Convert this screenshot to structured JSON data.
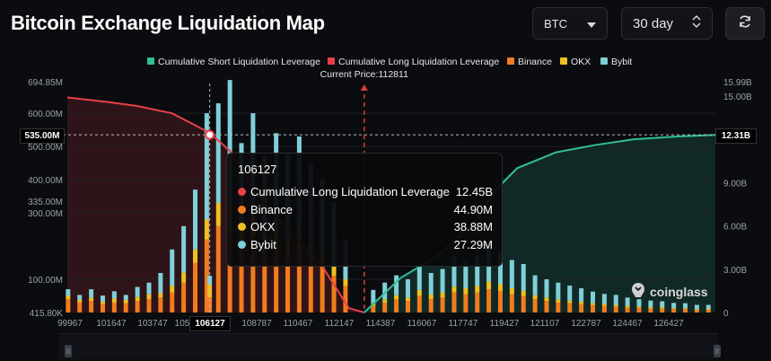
{
  "header": {
    "title": "Bitcoin Exchange Liquidation Map",
    "coin_select": "BTC",
    "range_select": "30 day"
  },
  "icons": {
    "coin_chevron": "chevron-down-icon",
    "range_spinner": "up-down-chevron-icon",
    "refresh": "refresh-icon",
    "watermark_logo": "coinglass-logo"
  },
  "colors": {
    "short_leverage": "#2fbf9a",
    "long_leverage": "#e8404a",
    "binance": "#f07c1e",
    "okx": "#f0c020",
    "bybit": "#7fd0d8",
    "current_price_line": "#e03a3a"
  },
  "chart_data": {
    "type": "bar",
    "legend": [
      "Cumulative Short Liquidation Leverage",
      "Cumulative Long Liquidation Leverage",
      "Binance",
      "OKX",
      "Bybit"
    ],
    "legend_position": "top-center",
    "current_price_label": "Current Price:112811",
    "current_price": 112811,
    "x_ticks": [
      "99967",
      "101647",
      "103747",
      "105",
      "7107",
      "108787",
      "110467",
      "112147",
      "114387",
      "116067",
      "117747",
      "119427",
      "121107",
      "122787",
      "124467",
      "126427"
    ],
    "x_range": [
      99967,
      128000
    ],
    "left_axis": {
      "ticks": [
        "694.85M",
        "600.00M",
        "535.00M",
        "500.00M",
        "400.00M",
        "335.00M",
        "300.00M",
        "100.00M",
        "415.80K"
      ],
      "range_millions": [
        0.4158,
        694.85
      ]
    },
    "right_axis": {
      "ticks": [
        "15.99B",
        "15.00B",
        "12.31B",
        "9.00B",
        "6.00B",
        "3.00B",
        "0"
      ],
      "range_billions": [
        0,
        15.99
      ]
    },
    "crosshair": {
      "x_label": "106127",
      "y_label": "535.00M",
      "right_label": "12.31B"
    },
    "series": [
      {
        "name": "Cumulative Long Liquidation Leverage",
        "axis": "right",
        "points": [
          [
            99967,
            14.9
          ],
          [
            101647,
            14.6
          ],
          [
            103000,
            14.3
          ],
          [
            104500,
            13.8
          ],
          [
            106127,
            12.45
          ],
          [
            107000,
            11.2
          ],
          [
            108000,
            8.6
          ],
          [
            109000,
            6.6
          ],
          [
            110000,
            5.0
          ],
          [
            111000,
            3.2
          ],
          [
            112147,
            0.3
          ],
          [
            112811,
            0
          ]
        ]
      },
      {
        "name": "Cumulative Short Liquidation Leverage",
        "axis": "right",
        "points": [
          [
            112811,
            0
          ],
          [
            114387,
            2.4
          ],
          [
            116067,
            4.0
          ],
          [
            117747,
            6.6
          ],
          [
            118500,
            8.5
          ],
          [
            119427,
            10.0
          ],
          [
            121107,
            11.1
          ],
          [
            122787,
            11.6
          ],
          [
            124467,
            12.0
          ],
          [
            126427,
            12.2
          ],
          [
            128000,
            12.3
          ]
        ]
      }
    ],
    "bar_series_names": [
      "Binance",
      "OKX",
      "Bybit"
    ],
    "bar_data": [
      [
        100000,
        40,
        10,
        20
      ],
      [
        100500,
        30,
        8,
        15
      ],
      [
        101000,
        35,
        10,
        25
      ],
      [
        101500,
        25,
        8,
        18
      ],
      [
        102000,
        30,
        12,
        22
      ],
      [
        102500,
        28,
        10,
        15
      ],
      [
        103000,
        35,
        12,
        30
      ],
      [
        103500,
        40,
        15,
        35
      ],
      [
        104000,
        45,
        14,
        60
      ],
      [
        104500,
        60,
        20,
        110
      ],
      [
        105000,
        90,
        30,
        140
      ],
      [
        105500,
        150,
        40,
        180
      ],
      [
        106000,
        220,
        60,
        320
      ],
      [
        106127,
        44.9,
        38.88,
        27.29
      ],
      [
        106500,
        260,
        70,
        300
      ],
      [
        107000,
        240,
        80,
        380
      ],
      [
        107500,
        200,
        50,
        260
      ],
      [
        108000,
        230,
        70,
        300
      ],
      [
        108500,
        180,
        50,
        240
      ],
      [
        109000,
        200,
        60,
        280
      ],
      [
        109500,
        170,
        50,
        260
      ],
      [
        110000,
        190,
        60,
        280
      ],
      [
        110500,
        160,
        40,
        250
      ],
      [
        111000,
        140,
        40,
        220
      ],
      [
        111500,
        110,
        30,
        190
      ],
      [
        112000,
        80,
        20,
        120
      ],
      [
        113200,
        20,
        8,
        40
      ],
      [
        113700,
        30,
        10,
        50
      ],
      [
        114200,
        40,
        12,
        60
      ],
      [
        114700,
        35,
        10,
        55
      ],
      [
        115200,
        50,
        18,
        70
      ],
      [
        115700,
        40,
        14,
        65
      ],
      [
        116200,
        45,
        16,
        70
      ],
      [
        116700,
        60,
        18,
        90
      ],
      [
        117200,
        55,
        18,
        80
      ],
      [
        117700,
        60,
        20,
        90
      ],
      [
        118200,
        70,
        24,
        110
      ],
      [
        118700,
        65,
        20,
        100
      ],
      [
        119200,
        55,
        18,
        85
      ],
      [
        119700,
        50,
        16,
        80
      ],
      [
        120200,
        40,
        12,
        60
      ],
      [
        120700,
        35,
        10,
        55
      ],
      [
        121200,
        30,
        10,
        50
      ],
      [
        121700,
        28,
        8,
        45
      ],
      [
        122200,
        25,
        8,
        40
      ],
      [
        122700,
        22,
        6,
        35
      ],
      [
        123200,
        20,
        6,
        30
      ],
      [
        123700,
        18,
        5,
        30
      ],
      [
        124200,
        15,
        5,
        25
      ],
      [
        124700,
        14,
        4,
        22
      ],
      [
        125200,
        12,
        4,
        20
      ],
      [
        125700,
        12,
        4,
        18
      ],
      [
        126200,
        10,
        3,
        16
      ],
      [
        126700,
        10,
        3,
        15
      ],
      [
        127200,
        8,
        3,
        12
      ],
      [
        127700,
        8,
        3,
        12
      ]
    ],
    "tooltip": {
      "header": "106127",
      "rows": [
        {
          "name": "Cumulative Long Liquidation Leverage",
          "value": "12.45B",
          "color": "#e8404a"
        },
        {
          "name": "Binance",
          "value": "44.90M",
          "color": "#f07c1e"
        },
        {
          "name": "OKX",
          "value": "38.88M",
          "color": "#f0c020"
        },
        {
          "name": "Bybit",
          "value": "27.29M",
          "color": "#7fd0d8"
        }
      ]
    }
  },
  "watermark": "coinglass"
}
